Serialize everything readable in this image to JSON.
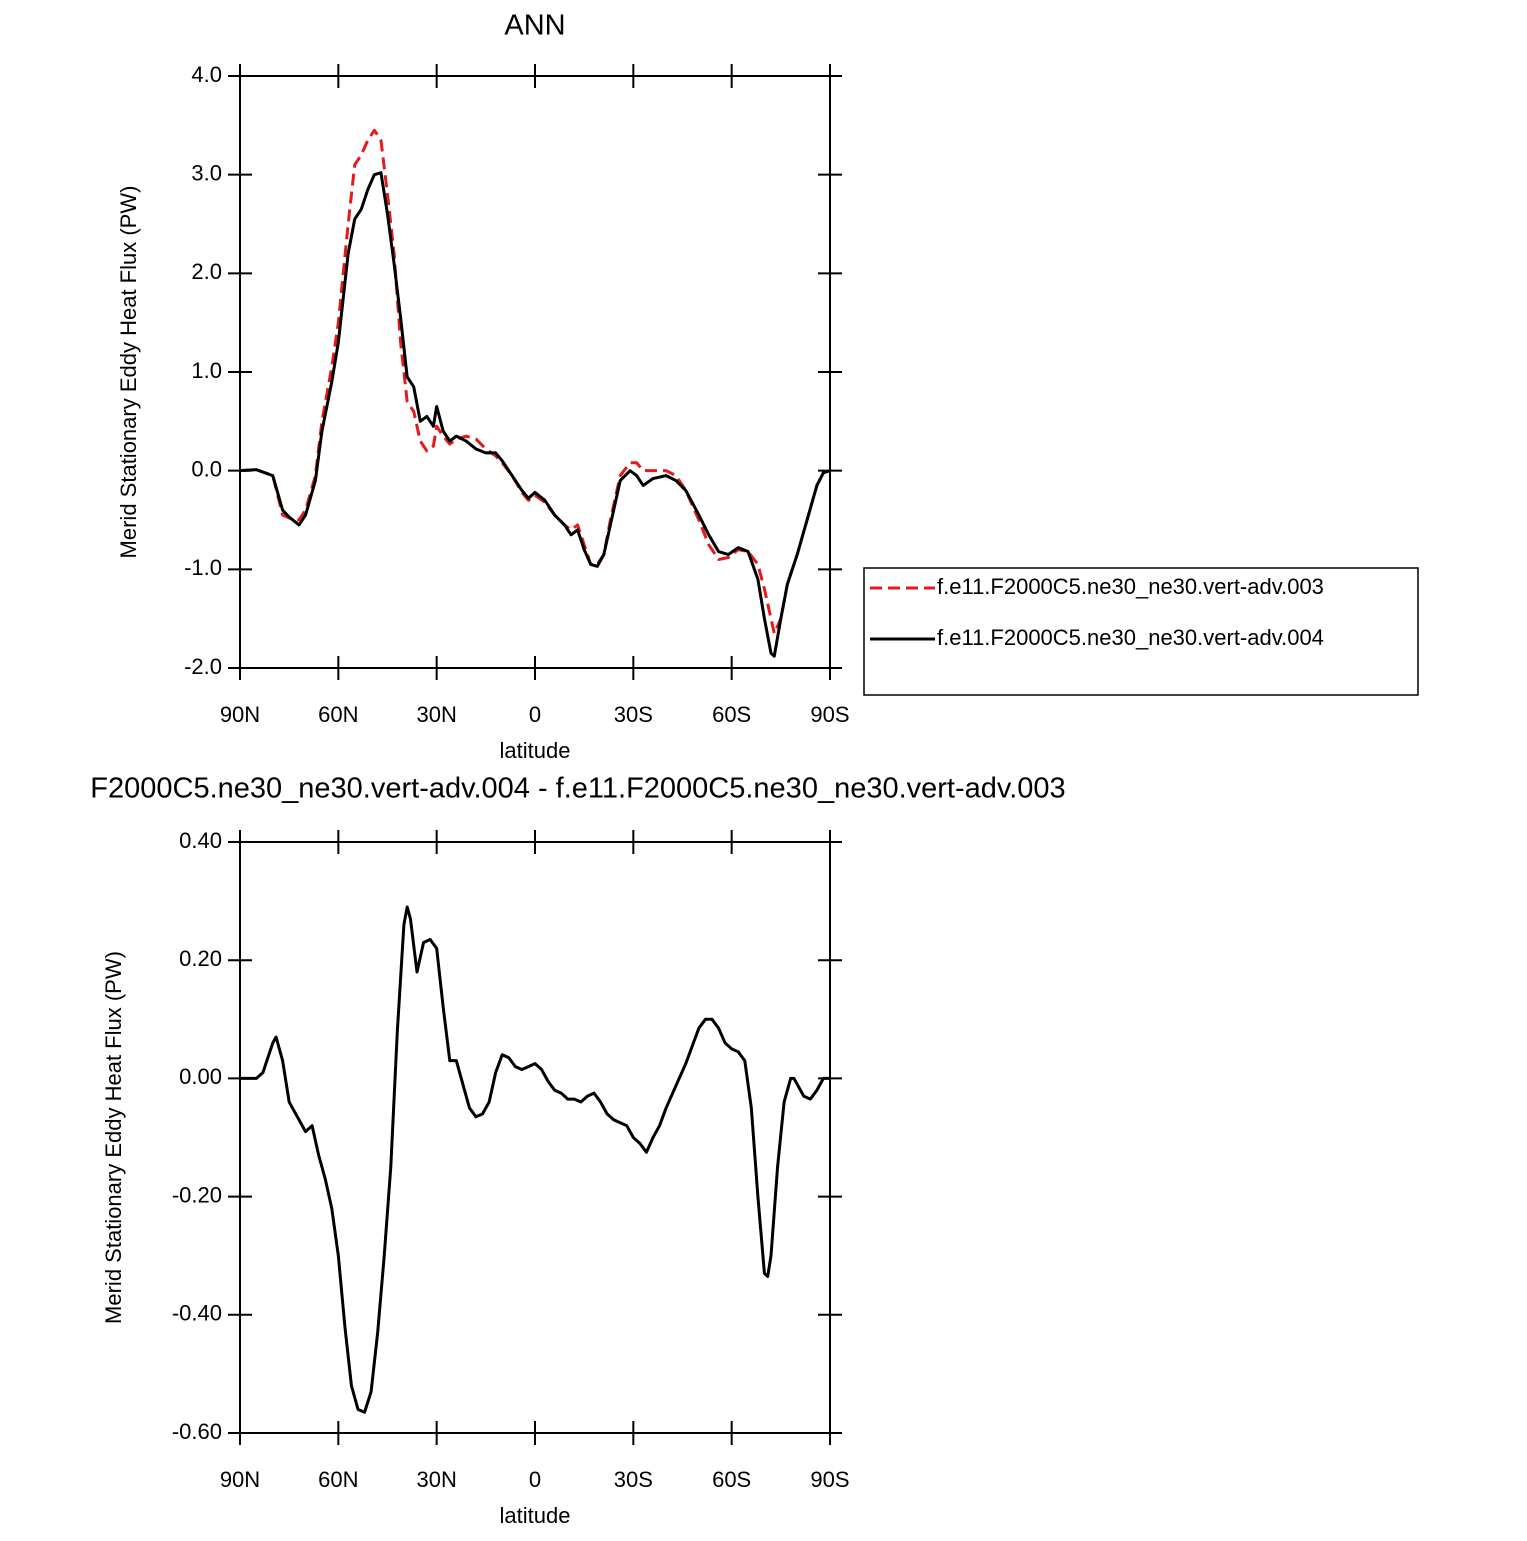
{
  "chart_data": [
    {
      "type": "line",
      "title": "ANN",
      "xlabel": "latitude",
      "ylabel": "Merid Stationary Eddy Heat Flux (PW)",
      "xlim": [
        90,
        -90
      ],
      "xticks": [
        {
          "value": 90,
          "label": "90N"
        },
        {
          "value": 60,
          "label": "60N"
        },
        {
          "value": 30,
          "label": "30N"
        },
        0,
        {
          "value": -30,
          "label": "30S"
        },
        {
          "value": -60,
          "label": "60S"
        },
        {
          "value": -90,
          "label": "90S"
        }
      ],
      "ylim": [
        -2,
        4
      ],
      "yticks": [
        {
          "value": -2,
          "label": "-2.0"
        },
        {
          "value": -1,
          "label": "-1.0"
        },
        {
          "value": 0,
          "label": "0.0"
        },
        {
          "value": 1,
          "label": "1.0"
        },
        {
          "value": 2,
          "label": "2.0"
        },
        {
          "value": 3,
          "label": "3.0"
        },
        {
          "value": 4,
          "label": "4.0"
        }
      ],
      "legend": "right",
      "x": [
        90,
        85,
        80,
        77,
        75,
        72,
        70,
        67,
        65,
        62,
        60,
        57,
        55,
        53,
        51,
        49,
        47,
        45,
        43,
        41,
        39,
        37,
        35,
        33,
        31,
        30,
        28,
        26,
        24,
        21,
        18,
        15,
        12,
        10,
        7,
        4,
        2,
        0,
        -3,
        -6,
        -9,
        -11,
        -13,
        -15,
        -17,
        -19,
        -21,
        -23,
        -26,
        -29,
        -31,
        -33,
        -36,
        -40,
        -43,
        -46,
        -50,
        -53,
        -56,
        -59,
        -62,
        -65,
        -68,
        -70,
        -72,
        -73,
        -75,
        -77,
        -80,
        -83,
        -86,
        -88,
        -90
      ],
      "series": [
        {
          "name": "f.e11.F2000C5.ne30_ne30.vert-adv.003",
          "color": "#e41a1c",
          "dash": true,
          "values": [
            0,
            0.01,
            -0.05,
            -0.45,
            -0.48,
            -0.5,
            -0.4,
            -0.05,
            0.5,
            1.05,
            1.5,
            2.5,
            3.1,
            3.2,
            3.35,
            3.45,
            3.35,
            2.8,
            2.2,
            1.3,
            0.7,
            0.6,
            0.3,
            0.2,
            0.25,
            0.45,
            0.35,
            0.27,
            0.32,
            0.35,
            0.32,
            0.22,
            0.15,
            0.08,
            -0.05,
            -0.22,
            -0.3,
            -0.25,
            -0.32,
            -0.45,
            -0.55,
            -0.6,
            -0.55,
            -0.75,
            -0.95,
            -0.95,
            -0.85,
            -0.5,
            -0.05,
            0.08,
            0.08,
            0,
            0,
            0,
            -0.05,
            -0.2,
            -0.5,
            -0.75,
            -0.9,
            -0.88,
            -0.8,
            -0.82,
            -0.95,
            -1.2,
            -1.5,
            -1.65,
            -1.5,
            -1.15,
            -0.85,
            -0.5,
            -0.15,
            -0.02,
            0
          ]
        },
        {
          "name": "f.e11.F2000C5.ne30_ne30.vert-adv.004",
          "color": "#000000",
          "dash": false,
          "values": [
            0,
            0.01,
            -0.05,
            -0.4,
            -0.47,
            -0.55,
            -0.45,
            -0.1,
            0.4,
            0.9,
            1.3,
            2.2,
            2.55,
            2.65,
            2.85,
            3.0,
            3.02,
            2.6,
            2.1,
            1.55,
            0.95,
            0.85,
            0.5,
            0.55,
            0.45,
            0.65,
            0.4,
            0.3,
            0.35,
            0.3,
            0.22,
            0.18,
            0.18,
            0.1,
            -0.05,
            -0.2,
            -0.28,
            -0.22,
            -0.3,
            -0.45,
            -0.55,
            -0.65,
            -0.6,
            -0.8,
            -0.95,
            -0.97,
            -0.85,
            -0.55,
            -0.1,
            0,
            -0.05,
            -0.15,
            -0.08,
            -0.05,
            -0.1,
            -0.2,
            -0.45,
            -0.65,
            -0.82,
            -0.85,
            -0.78,
            -0.82,
            -1.1,
            -1.5,
            -1.85,
            -1.88,
            -1.5,
            -1.15,
            -0.85,
            -0.5,
            -0.15,
            -0.02,
            0
          ]
        }
      ]
    },
    {
      "type": "line",
      "title": "F2000C5.ne30_ne30.vert-adv.004 - f.e11.F2000C5.ne30_ne30.vert-adv.003",
      "xlabel": "latitude",
      "ylabel": "Merid Stationary Eddy Heat Flux (PW)",
      "xlim": [
        90,
        -90
      ],
      "xticks": [
        {
          "value": 90,
          "label": "90N"
        },
        {
          "value": 60,
          "label": "60N"
        },
        {
          "value": 30,
          "label": "30N"
        },
        0,
        {
          "value": -30,
          "label": "30S"
        },
        {
          "value": -60,
          "label": "60S"
        },
        {
          "value": -90,
          "label": "90S"
        }
      ],
      "ylim": [
        -0.6,
        0.4
      ],
      "yticks": [
        {
          "value": -0.6,
          "label": "-0.60"
        },
        {
          "value": -0.4,
          "label": "-0.40"
        },
        {
          "value": -0.2,
          "label": "-0.20"
        },
        {
          "value": 0,
          "label": "0.00"
        },
        {
          "value": 0.2,
          "label": "0.20"
        },
        {
          "value": 0.4,
          "label": "0.40"
        }
      ],
      "x": [
        90,
        85,
        83,
        80,
        79,
        77,
        75,
        72,
        70,
        68,
        66,
        64,
        62,
        60,
        58,
        56,
        54,
        52,
        50,
        48,
        46,
        44,
        42,
        40,
        39,
        38,
        36,
        34,
        32,
        30,
        28,
        26,
        24,
        22,
        20,
        18,
        16,
        14,
        12,
        10,
        8,
        6,
        4,
        2,
        0,
        -2,
        -4,
        -6,
        -8,
        -10,
        -12,
        -14,
        -16,
        -18,
        -20,
        -22,
        -24,
        -26,
        -28,
        -30,
        -32,
        -34,
        -36,
        -38,
        -40,
        -42,
        -44,
        -46,
        -48,
        -50,
        -52,
        -54,
        -56,
        -58,
        -60,
        -62,
        -64,
        -66,
        -68,
        -70,
        -71,
        -72,
        -74,
        -76,
        -78,
        -79,
        -80,
        -82,
        -84,
        -86,
        -88,
        -90
      ],
      "series": [
        {
          "color": "#000000",
          "dash": false,
          "values": [
            0,
            0,
            0.01,
            0.06,
            0.07,
            0.03,
            -0.04,
            -0.07,
            -0.09,
            -0.08,
            -0.13,
            -0.17,
            -0.22,
            -0.3,
            -0.42,
            -0.52,
            -0.56,
            -0.565,
            -0.53,
            -0.43,
            -0.3,
            -0.15,
            0.08,
            0.26,
            0.29,
            0.27,
            0.18,
            0.23,
            0.235,
            0.22,
            0.12,
            0.03,
            0.03,
            -0.01,
            -0.05,
            -0.065,
            -0.06,
            -0.04,
            0.01,
            0.04,
            0.035,
            0.02,
            0.015,
            0.02,
            0.025,
            0.015,
            -0.005,
            -0.02,
            -0.025,
            -0.035,
            -0.035,
            -0.04,
            -0.03,
            -0.025,
            -0.04,
            -0.06,
            -0.07,
            -0.075,
            -0.08,
            -0.1,
            -0.11,
            -0.125,
            -0.1,
            -0.08,
            -0.05,
            -0.025,
            0,
            0.025,
            0.055,
            0.085,
            0.1,
            0.1,
            0.085,
            0.06,
            0.05,
            0.045,
            0.03,
            -0.05,
            -0.2,
            -0.33,
            -0.335,
            -0.3,
            -0.15,
            -0.04,
            0,
            0,
            -0.01,
            -0.03,
            -0.035,
            -0.02,
            0,
            0
          ]
        }
      ]
    }
  ]
}
